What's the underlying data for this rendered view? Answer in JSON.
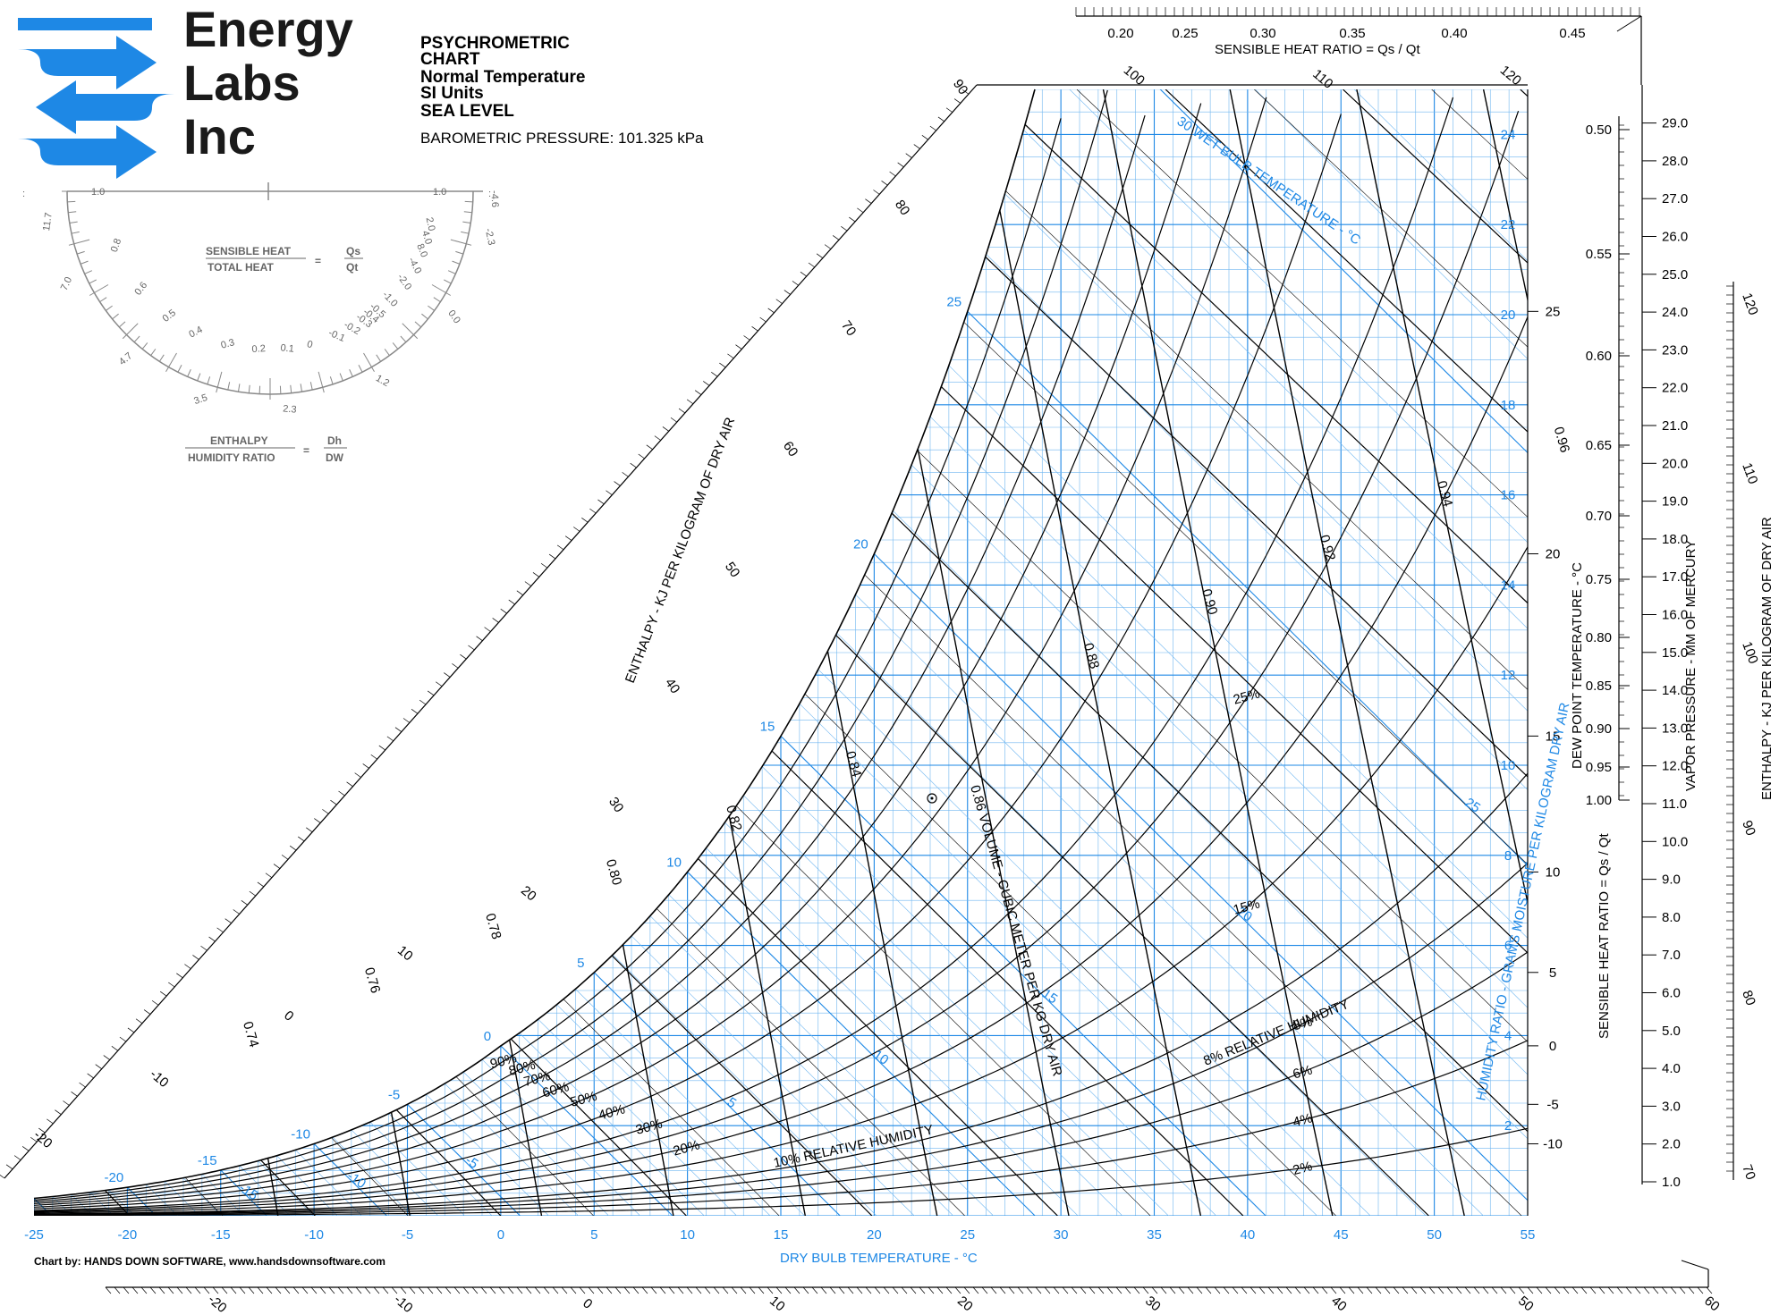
{
  "logo": {
    "line1": "Energy",
    "line2": "Labs",
    "line3": "Inc",
    "color": "#1e88e5"
  },
  "header": {
    "title1": "PSYCHROMETRIC",
    "title2": "CHART",
    "title3": "Normal Temperature",
    "title4": "SI Units",
    "title5": "SEA LEVEL",
    "barometric": "BAROMETRIC PRESSURE: 101.325 kPa"
  },
  "protractor": {
    "shr_top": "SENSIBLE HEAT",
    "shr_bottom": "TOTAL HEAT",
    "shr_rhs_top": "Qs",
    "shr_rhs_bottom": "Qt",
    "enth_top": "ENTHALPY",
    "enth_bottom": "HUMIDITY RATIO",
    "enth_rhs_top": "Dh",
    "enth_rhs_bottom": "DW",
    "top_left_label": "1.0",
    "top_right_label": "1.0",
    "inner_labels": [
      "0.8",
      "0.6",
      "0.5",
      "0.4",
      "0.3",
      "0.2",
      "0.1",
      "0",
      "-0.1",
      "-0.2",
      "-0.3",
      "-0.4",
      "-0.5",
      "-1.0",
      "-2.0",
      "-4.0",
      "8.0",
      "4.0",
      "2.0"
    ],
    "outer_labels": [
      "11.7",
      "7.0",
      "4.7",
      "3.5",
      "2.3",
      "1.2",
      "0.0",
      "-2.3",
      "-4.6"
    ]
  },
  "credit": "Chart by: HANDS DOWN SOFTWARE, www.handsdownsoftware.com",
  "labels": {
    "dry_bulb_title": "DRY BULB TEMPERATURE - °C",
    "enthalpy_left_title": "ENTHALPY - KJ PER KILOGRAM OF DRY AIR",
    "enthalpy_right_title": "ENTHALPY - KJ PER KILOGRAM OF DRY AIR",
    "shr_top_title": "SENSIBLE HEAT RATIO = Qs / Qt",
    "shr_right_title": "SENSIBLE HEAT RATIO = Qs / Qt",
    "dew_point_title": "DEW POINT TEMPERATURE - °C",
    "vapor_title": "VAPOR PRESSURE - MM OF MERCURY",
    "humidity_ratio_title": "HUMIDITY RATIO - GRAMS MOISTURE PER KILOGRAM DRY AIR",
    "wet_bulb_title": "30 WET BULB TEMPERATURE - °C",
    "volume_title": "0.86 VOLUME - CUBIC METER PER KG DRY AIR",
    "rh_10": "10% RELATIVE HUMIDITY",
    "rh_8": "8% RELATIVE HUMIDITY"
  },
  "chart_data": {
    "type": "psychrometric",
    "dry_bulb_ticks": [
      -25,
      -20,
      -15,
      -10,
      -5,
      0,
      5,
      10,
      15,
      20,
      25,
      30,
      35,
      40,
      45,
      50,
      55
    ],
    "humidity_ratio_ticks": [
      2,
      4,
      6,
      8,
      10,
      12,
      14,
      16,
      18,
      20,
      22,
      24
    ],
    "dew_point_ticks": [
      -10,
      -5,
      0,
      5,
      10,
      15,
      20,
      25
    ],
    "vapor_pressure_ticks": [
      "1.0",
      "2.0",
      "3.0",
      "4.0",
      "5.0",
      "6.0",
      "7.0",
      "8.0",
      "9.0",
      "10.0",
      "11.0",
      "12.0",
      "13.0",
      "14.0",
      "15.0",
      "16.0",
      "17.0",
      "18.0",
      "19.0",
      "20.0",
      "21.0",
      "22.0",
      "23.0",
      "24.0",
      "25.0",
      "26.0",
      "27.0",
      "28.0",
      "29.0"
    ],
    "shr_right_ticks": [
      "1.00",
      "0.95",
      "0.90",
      "0.85",
      "0.80",
      "0.75",
      "0.70",
      "0.65",
      "0.60",
      "0.55",
      "0.50"
    ],
    "shr_top_ticks": [
      "0.20",
      "0.25",
      "0.30",
      "0.35",
      "0.40",
      "0.45"
    ],
    "enthalpy_left_ticks": [
      -20,
      -10,
      0,
      10,
      20,
      30,
      40,
      50,
      60,
      70,
      80,
      90
    ],
    "enthalpy_top_ticks": [
      100,
      110,
      120
    ],
    "enthalpy_right_ticks": [
      70,
      80,
      90,
      100,
      110,
      120
    ],
    "enthalpy_bottom_ticks": [
      -20,
      -10,
      0,
      10,
      20,
      30,
      40,
      50,
      60
    ],
    "wet_bulb_labels": [
      -20,
      -15,
      -10,
      -5,
      0,
      5,
      10,
      15,
      20,
      25
    ],
    "wet_bulb_inner_labels": [
      -15,
      -10,
      -5,
      5,
      10,
      15,
      20,
      25
    ],
    "rh_curves": [
      2,
      4,
      6,
      8,
      10,
      15,
      20,
      25,
      30,
      40,
      50,
      60,
      70,
      80,
      90,
      100
    ],
    "rh_labels": [
      "2%",
      "4%",
      "6%",
      "8%",
      "10%",
      "15%",
      "20%",
      "25%",
      "30%",
      "40%",
      "50%",
      "60%",
      "70%",
      "80%",
      "90%"
    ],
    "volume_lines": [
      0.74,
      0.76,
      0.78,
      0.8,
      0.82,
      0.84,
      0.86,
      0.88,
      0.9,
      0.92,
      0.94,
      0.96
    ],
    "volume_labels": [
      "0.74",
      "0.76",
      "0.78",
      "0.80",
      "0.82",
      "0.84",
      "0.86",
      "0.88",
      "0.90",
      "0.92",
      "0.94",
      "0.96"
    ],
    "xlim": [
      -25,
      55
    ],
    "ylim_humidity_ratio": [
      0,
      25
    ]
  }
}
